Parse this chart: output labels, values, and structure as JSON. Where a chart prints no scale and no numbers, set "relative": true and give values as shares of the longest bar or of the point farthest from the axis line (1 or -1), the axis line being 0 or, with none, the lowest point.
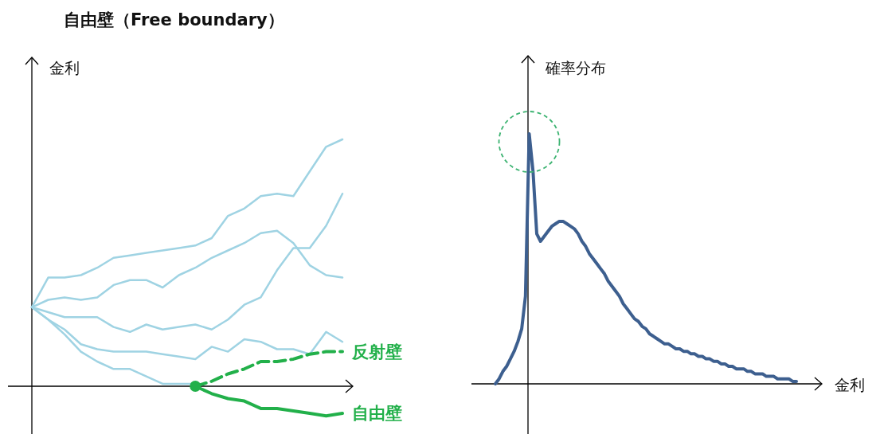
{
  "chart_data": [
    {
      "type": "line",
      "title": "自由壁（Free boundary）",
      "ylabel": "金利",
      "relative": true,
      "categories": [
        null,
        null,
        null,
        null,
        null,
        null,
        null,
        null,
        null,
        null,
        null,
        null,
        null,
        null,
        null,
        null,
        null,
        null,
        null,
        null
      ],
      "series": [
        {
          "color": "#9fd3e3",
          "values": [
            0.32,
            0.44,
            0.44,
            0.45,
            0.48,
            0.52,
            0.53,
            0.54,
            0.55,
            0.56,
            0.57,
            0.6,
            0.69,
            0.72,
            0.77,
            0.78,
            0.77,
            0.87,
            0.97,
            1.0
          ]
        },
        {
          "color": "#9fd3e3",
          "values": [
            0.32,
            0.35,
            0.36,
            0.35,
            0.36,
            0.41,
            0.43,
            0.43,
            0.4,
            0.45,
            0.48,
            0.52,
            0.55,
            0.58,
            0.62,
            0.63,
            0.58,
            0.49,
            0.45,
            0.44
          ]
        },
        {
          "color": "#9fd3e3",
          "values": [
            0.32,
            0.3,
            0.28,
            0.28,
            0.28,
            0.24,
            0.22,
            0.25,
            0.23,
            0.24,
            0.25,
            0.23,
            0.27,
            0.33,
            0.36,
            0.47,
            0.56,
            0.56,
            0.65,
            0.78
          ]
        },
        {
          "color": "#9fd3e3",
          "values": [
            0.32,
            0.27,
            0.23,
            0.17,
            0.15,
            0.14,
            0.14,
            0.14,
            0.13,
            0.12,
            0.11,
            0.16,
            0.14,
            0.19,
            0.18,
            0.15,
            0.15,
            0.13,
            0.22,
            0.18
          ]
        },
        {
          "color": "#9fd3e3",
          "values": [
            0.32,
            0.27,
            0.21,
            0.14,
            0.1,
            0.07,
            0.07,
            0.04,
            0.01,
            0.01,
            0.01,
            null,
            null,
            null,
            null,
            null,
            null,
            null,
            null,
            null
          ]
        },
        {
          "name": "反射壁",
          "color": "#22b04a",
          "line_style": "dashed",
          "values": [
            null,
            null,
            null,
            null,
            null,
            null,
            null,
            null,
            null,
            null,
            0,
            0.02,
            0.05,
            0.07,
            0.1,
            0.1,
            0.11,
            0.13,
            0.14,
            0.14
          ]
        },
        {
          "name": "自由壁",
          "color": "#22b04a",
          "values": [
            null,
            null,
            null,
            null,
            null,
            null,
            null,
            null,
            null,
            null,
            0,
            -0.03,
            -0.05,
            -0.06,
            -0.09,
            -0.09,
            -0.1,
            -0.11,
            -0.12,
            -0.11
          ]
        }
      ]
    },
    {
      "type": "line",
      "ylabel": "確率分布",
      "xlabel": "金利",
      "relative": true,
      "categories": [
        null,
        null,
        null,
        null,
        null,
        null,
        null,
        null,
        null,
        null,
        null,
        null,
        null,
        null,
        null,
        null,
        null,
        null,
        null,
        null,
        null,
        null,
        null,
        null,
        null,
        null,
        null,
        null,
        null,
        null,
        null,
        null,
        null,
        null,
        null,
        null,
        null,
        null,
        null,
        null,
        null,
        null,
        null,
        null,
        null,
        null,
        null,
        null,
        null,
        null,
        null,
        null,
        null,
        null,
        null,
        null,
        null,
        null,
        null,
        null,
        null,
        null,
        null,
        null,
        null,
        null,
        null,
        null,
        null,
        null,
        null,
        null,
        null,
        null,
        null,
        null,
        null,
        null,
        null,
        null,
        null
      ],
      "series": [
        {
          "color": "#3d5f8f",
          "values": [
            0,
            0.02,
            0.05,
            0.07,
            0.1,
            0.13,
            0.17,
            0.22,
            0.35,
            1.0,
            0.85,
            0.6,
            0.57,
            0.59,
            0.61,
            0.63,
            0.64,
            0.65,
            0.65,
            0.64,
            0.63,
            0.62,
            0.6,
            0.57,
            0.55,
            0.52,
            0.5,
            0.48,
            0.46,
            0.44,
            0.41,
            0.39,
            0.37,
            0.35,
            0.32,
            0.3,
            0.28,
            0.26,
            0.25,
            0.23,
            0.22,
            0.2,
            0.19,
            0.18,
            0.17,
            0.16,
            0.16,
            0.15,
            0.14,
            0.14,
            0.13,
            0.13,
            0.12,
            0.12,
            0.11,
            0.11,
            0.1,
            0.1,
            0.09,
            0.09,
            0.08,
            0.08,
            0.07,
            0.07,
            0.06,
            0.06,
            0.06,
            0.05,
            0.05,
            0.04,
            0.04,
            0.04,
            0.03,
            0.03,
            0.03,
            0.02,
            0.02,
            0.02,
            0.02,
            0.01,
            0.01
          ]
        }
      ]
    }
  ]
}
